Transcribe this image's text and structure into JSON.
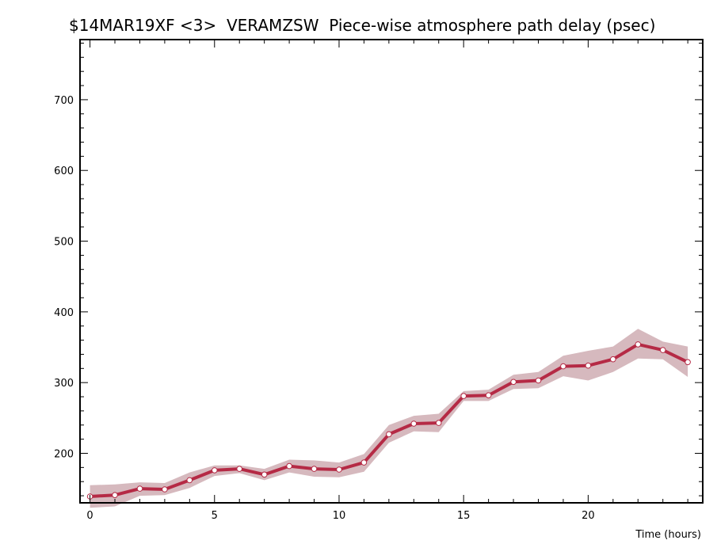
{
  "colors": {
    "background": "#ffffff",
    "axis": "#000000",
    "series_line": "#b52a45",
    "uncertainty_band": "#d6b9be",
    "point_fill": "#ffffff"
  },
  "chart_data": {
    "type": "line",
    "title": "$14MAR19XF <3>  VERAMZSW  Piece-wise atmosphere path delay (psec)",
    "xlabel": "Time (hours)",
    "ylabel": "",
    "xlim": [
      -0.4,
      24.6
    ],
    "ylim": [
      130,
      785
    ],
    "x_ticks": [
      0,
      5,
      10,
      15,
      20
    ],
    "y_ticks": [
      200,
      300,
      400,
      500,
      600,
      700
    ],
    "x_tick_labels": [
      "0",
      "5",
      "10",
      "15",
      "20"
    ],
    "y_tick_labels": [
      "200",
      "300",
      "400",
      "500",
      "600",
      "700"
    ],
    "grid": false,
    "legend": "none",
    "series": [
      {
        "x": [
          0,
          1,
          2,
          3,
          4,
          5,
          6,
          7,
          8,
          9,
          10,
          11,
          12,
          13,
          14,
          15,
          16,
          17,
          18,
          19,
          20,
          21,
          22,
          23,
          24
        ],
        "y": [
          139,
          141,
          150,
          149,
          162,
          176,
          178,
          170,
          182,
          178,
          177,
          187,
          227,
          242,
          243,
          281,
          282,
          301,
          303,
          323,
          324,
          333,
          354,
          346,
          329
        ],
        "lower": [
          123,
          125,
          140,
          141,
          151,
          168,
          172,
          162,
          173,
          167,
          166,
          174,
          215,
          231,
          230,
          274,
          274,
          291,
          292,
          309,
          303,
          315,
          334,
          333,
          308
        ],
        "upper": [
          155,
          156,
          159,
          158,
          173,
          183,
          183,
          178,
          191,
          190,
          187,
          199,
          240,
          253,
          256,
          288,
          290,
          311,
          315,
          338,
          345,
          351,
          376,
          358,
          351
        ]
      }
    ]
  }
}
